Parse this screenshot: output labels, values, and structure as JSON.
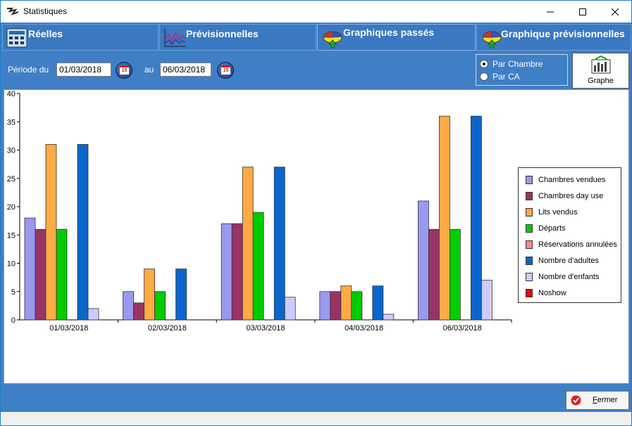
{
  "window": {
    "title": "Statistiques"
  },
  "tabs": [
    {
      "label": "Réelles",
      "icon": "calculator-icon"
    },
    {
      "label": "Prévisionnelles",
      "icon": "line-chart-icon"
    },
    {
      "label": "Graphiques passés",
      "icon": "pie-chart-icon",
      "active": true
    },
    {
      "label": "Graphique prévisionnelles",
      "icon": "pie-chart-icon"
    }
  ],
  "period": {
    "from_label": "Période du",
    "from_value": "01/03/2018",
    "to_label": "au",
    "to_value": "06/03/2018"
  },
  "mode": {
    "options": [
      {
        "label": "Par Chambre",
        "selected": true
      },
      {
        "label": "Par CA",
        "selected": false
      }
    ]
  },
  "graphe_button": {
    "label": "Graphe"
  },
  "close_button": {
    "label_first": "F",
    "label_rest": "ermer"
  },
  "colors": {
    "chambres_vendues": "#9999f0",
    "chambres_day_use": "#993366",
    "lits_vendus": "#ffaa44",
    "departs": "#00cc00",
    "reservations_annulees": "#ff8888",
    "nombre_adultes": "#0a66cc",
    "nombre_enfants": "#ccccff",
    "noshow": "#ff0000"
  },
  "chart_data": {
    "type": "bar",
    "categories": [
      "01/03/2018",
      "02/03/2018",
      "03/03/2018",
      "04/03/2018",
      "06/03/2018"
    ],
    "ylim": [
      0,
      40
    ],
    "yticks": [
      0,
      5,
      10,
      15,
      20,
      25,
      30,
      35,
      40
    ],
    "legend_position": "right",
    "series": [
      {
        "name": "Chambres vendues",
        "color": "#9999f0",
        "values": [
          18,
          5,
          17,
          5,
          21
        ]
      },
      {
        "name": "Chambres day use",
        "color": "#993366",
        "values": [
          16,
          3,
          17,
          5,
          16
        ]
      },
      {
        "name": "Lits vendus",
        "color": "#ffaa44",
        "values": [
          31,
          9,
          27,
          6,
          36
        ]
      },
      {
        "name": "Départs",
        "color": "#00cc00",
        "values": [
          16,
          5,
          19,
          5,
          16
        ]
      },
      {
        "name": "Réservations annulées",
        "color": "#ff8888",
        "values": [
          0,
          0,
          0,
          0,
          0
        ]
      },
      {
        "name": "Nombre d'adultes",
        "color": "#0a66cc",
        "values": [
          31,
          9,
          27,
          6,
          36
        ]
      },
      {
        "name": "Nombre d'enfants",
        "color": "#ccccff",
        "values": [
          2,
          0,
          4,
          1,
          7
        ]
      },
      {
        "name": "Noshow",
        "color": "#ff0000",
        "values": [
          0,
          0,
          0,
          0,
          0
        ]
      }
    ]
  }
}
